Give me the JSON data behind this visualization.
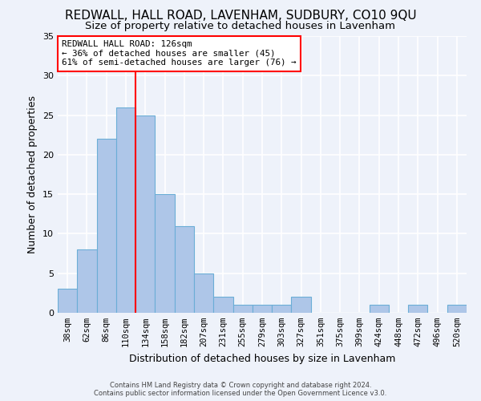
{
  "title": "REDWALL, HALL ROAD, LAVENHAM, SUDBURY, CO10 9QU",
  "subtitle": "Size of property relative to detached houses in Lavenham",
  "xlabel": "Distribution of detached houses by size in Lavenham",
  "ylabel": "Number of detached properties",
  "bar_labels": [
    "38sqm",
    "62sqm",
    "86sqm",
    "110sqm",
    "134sqm",
    "158sqm",
    "182sqm",
    "207sqm",
    "231sqm",
    "255sqm",
    "279sqm",
    "303sqm",
    "327sqm",
    "351sqm",
    "375sqm",
    "399sqm",
    "424sqm",
    "448sqm",
    "472sqm",
    "496sqm",
    "520sqm"
  ],
  "bar_values": [
    3,
    8,
    22,
    26,
    25,
    15,
    11,
    5,
    2,
    1,
    1,
    1,
    2,
    0,
    0,
    0,
    1,
    0,
    1,
    0,
    1
  ],
  "bar_color": "#aec6e8",
  "bar_edge_color": "#6baed6",
  "ylim": [
    0,
    35
  ],
  "yticks": [
    0,
    5,
    10,
    15,
    20,
    25,
    30,
    35
  ],
  "property_label": "REDWALL HALL ROAD: 126sqm",
  "annotation_line1": "← 36% of detached houses are smaller (45)",
  "annotation_line2": "61% of semi-detached houses are larger (76) →",
  "vline_position": 3.5,
  "footer_line1": "Contains HM Land Registry data © Crown copyright and database right 2024.",
  "footer_line2": "Contains public sector information licensed under the Open Government Licence v3.0.",
  "bg_color": "#eef2fa",
  "grid_color": "#ffffff",
  "title_fontsize": 11,
  "subtitle_fontsize": 9.5,
  "tick_fontsize": 7.5,
  "ylabel_fontsize": 9,
  "xlabel_fontsize": 9
}
